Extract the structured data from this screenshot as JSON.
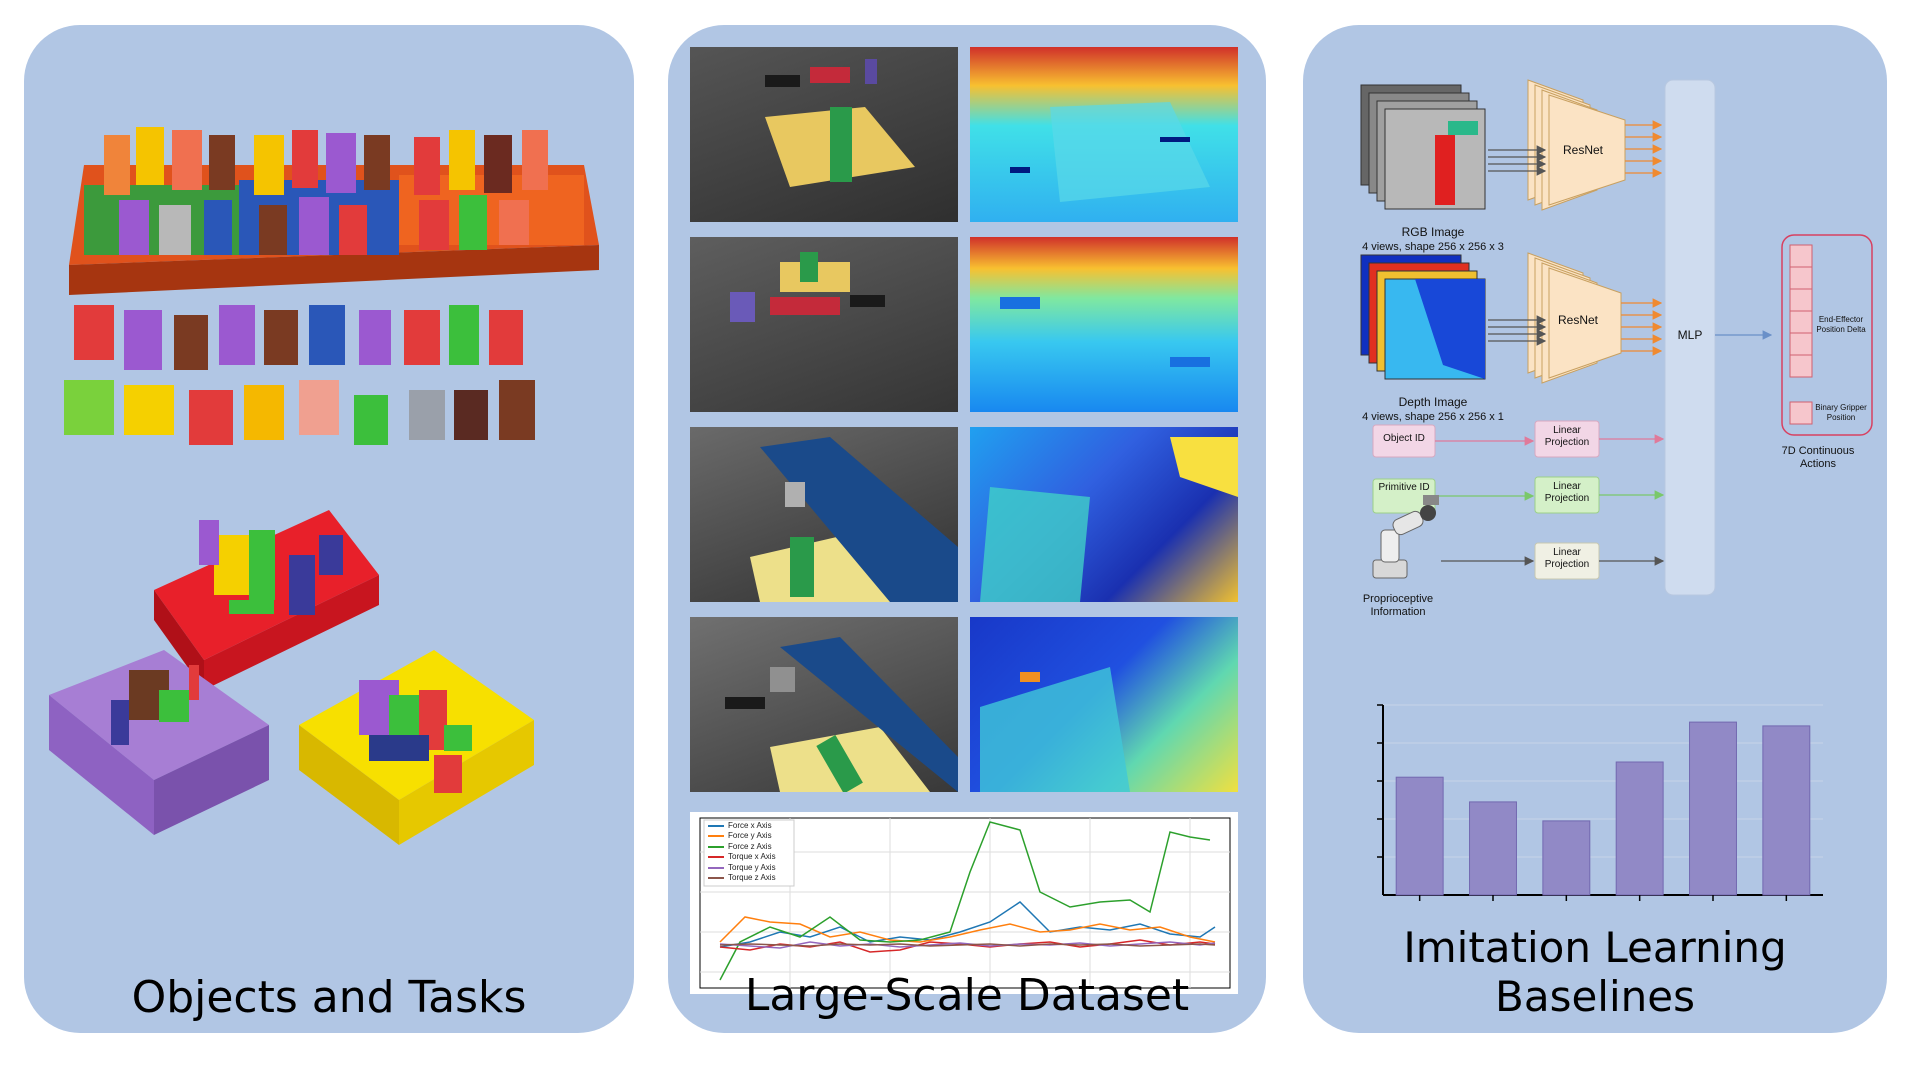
{
  "panels": {
    "objects": {
      "title": "Objects and Tasks"
    },
    "dataset": {
      "title": "Large-Scale Dataset",
      "ft_legend": [
        "Force x Axis",
        "Force y Axis",
        "Force z Axis",
        "Torque x Axis",
        "Torque y Axis",
        "Torque z Axis"
      ],
      "ft_colors": [
        "#1f77b4",
        "#ff7f0e",
        "#2ca02c",
        "#d62728",
        "#9467bd",
        "#8c564b"
      ]
    },
    "baselines": {
      "title": "Imitation Learning Baselines",
      "rgb_label": "RGB Image",
      "rgb_shape": "4 views, shape 256 x 256 x 3",
      "depth_label": "Depth Image",
      "depth_shape": "4 views, shape 256 x 256 x 1",
      "resnet": "ResNet",
      "mlp": "MLP",
      "object_id": "Object ID",
      "primitive_id": "Primitive ID",
      "linear_projection": "Linear Projection",
      "proprio": "Proprioceptive Information",
      "ee_delta": "End-Effector Position Delta",
      "gripper": "Binary Gripper Position",
      "actions": "7D Continuous Actions",
      "bar_color": "#9189c6"
    }
  },
  "chart_data": {
    "type": "bar",
    "categories": [
      "",
      "",
      "",
      "",
      "",
      ""
    ],
    "values": [
      0.62,
      0.49,
      0.39,
      0.7,
      0.91,
      0.89
    ],
    "ylim": [
      0,
      1
    ],
    "title": "",
    "xlabel": "",
    "ylabel": ""
  }
}
